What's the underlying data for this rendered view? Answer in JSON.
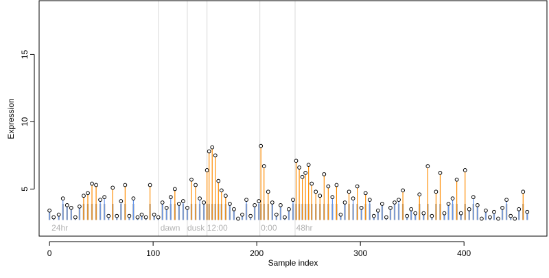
{
  "chart_data": {
    "type": "scatter",
    "xlabel": "Sample index",
    "ylabel": "Expression",
    "xlim": [
      -10,
      480
    ],
    "ylim": [
      1.5,
      19
    ],
    "xticks": [
      0,
      100,
      200,
      300,
      400
    ],
    "yticks": [
      5,
      10,
      15
    ],
    "grid": false,
    "segment_labels": [
      {
        "text": "24hr",
        "x": 2
      },
      {
        "text": "dawn",
        "x": 107
      },
      {
        "text": "dusk",
        "x": 133
      },
      {
        "text": "12:00",
        "x": 152
      },
      {
        "text": "0:00",
        "x": 204
      },
      {
        "text": "48hr",
        "x": 238
      }
    ],
    "segment_boundaries": [
      105,
      133,
      152,
      203,
      237
    ],
    "colors": {
      "frame": "#000000",
      "divider": "#d9d9d9",
      "segment_label": "#b3b3b3",
      "stem_above": "#ff8c00",
      "stem_below": "#6495ed",
      "baseline_bar": "#a6a6a6",
      "point_stroke": "#000000",
      "point_fill": "#ffffff"
    },
    "series": [
      {
        "x": [
          0,
          4,
          9,
          13,
          17,
          21,
          25,
          29,
          33,
          37,
          41,
          45,
          49,
          53,
          57,
          61,
          65,
          69,
          73,
          77,
          81,
          85,
          89,
          93,
          97,
          101,
          105,
          109,
          113,
          117,
          121,
          125,
          129,
          133,
          137,
          141,
          145,
          149,
          152,
          154,
          157,
          160,
          163,
          166,
          170,
          174,
          178,
          182,
          186,
          190,
          194,
          198,
          202,
          204,
          207,
          211,
          215,
          219,
          223,
          227,
          231,
          235,
          238,
          241,
          244,
          247,
          250,
          253,
          257,
          261,
          265,
          269,
          273,
          277,
          281,
          285,
          289,
          293,
          297,
          301,
          305,
          309,
          313,
          317,
          321,
          325,
          329,
          333,
          337,
          341,
          345,
          349,
          353,
          357,
          361,
          365,
          369,
          373,
          377,
          381,
          385,
          389,
          393,
          397,
          401,
          405,
          409,
          413,
          417,
          421,
          425,
          429,
          433,
          437,
          441,
          445,
          449,
          453,
          457,
          461
        ],
        "y": [
          3.4,
          2.9,
          3.1,
          4.3,
          3.8,
          3.6,
          2.9,
          3.7,
          4.5,
          4.7,
          5.4,
          5.3,
          4.2,
          4.4,
          3.0,
          5.1,
          3.0,
          4.1,
          5.3,
          3.0,
          4.3,
          2.9,
          3.1,
          2.9,
          5.3,
          3.1,
          2.9,
          4.0,
          3.6,
          4.4,
          5.0,
          3.9,
          4.1,
          3.6,
          5.7,
          5.3,
          4.3,
          4.0,
          6.4,
          7.8,
          8.1,
          7.5,
          5.6,
          4.9,
          4.5,
          3.9,
          3.5,
          2.8,
          3.1,
          4.2,
          3.0,
          3.8,
          4.1,
          8.2,
          6.7,
          4.8,
          4.0,
          3.1,
          3.8,
          2.9,
          3.5,
          4.2,
          7.1,
          6.6,
          5.9,
          6.2,
          6.8,
          5.4,
          4.8,
          4.5,
          6.1,
          5.2,
          4.4,
          5.3,
          3.1,
          4.0,
          4.8,
          4.3,
          5.2,
          3.6,
          4.7,
          4.2,
          3.0,
          3.4,
          3.9,
          2.9,
          3.6,
          4.0,
          4.2,
          4.9,
          3.0,
          3.5,
          3.2,
          4.6,
          3.2,
          6.7,
          3.0,
          4.8,
          6.2,
          3.2,
          3.9,
          4.3,
          5.7,
          3.2,
          6.4,
          3.5,
          4.4,
          3.8,
          2.8,
          3.4,
          2.9,
          3.3,
          2.8,
          3.6,
          4.2,
          3.0,
          2.8,
          3.5,
          4.8,
          3.3
        ]
      }
    ]
  }
}
